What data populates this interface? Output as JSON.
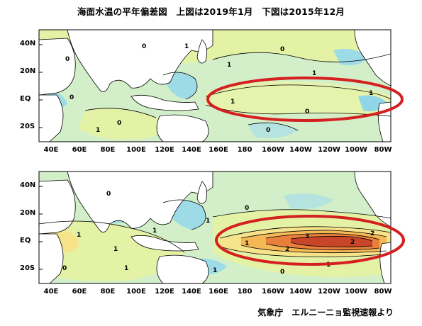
{
  "title": "海面水温の平年偏差図　上図は2019年1月　下図は2015年12月",
  "source": "気象庁　エルニーニョ監視速報より",
  "axes": {
    "latitude_labels": [
      "40N",
      "20N",
      "EQ",
      "20S"
    ],
    "longitude_labels": [
      "40E",
      "60E",
      "80E",
      "100E",
      "120E",
      "140E",
      "160E",
      "180",
      "160W",
      "140W",
      "120W",
      "100W",
      "80W"
    ]
  },
  "maps": [
    {
      "id": "top",
      "period": "2019年1月",
      "contour_labels": [
        "0",
        "0",
        "1",
        "1",
        "0",
        "0",
        "1",
        "0",
        "1",
        "0",
        "0",
        "1",
        "1"
      ],
      "highlight": "red-ellipse-equatorial-pacific"
    },
    {
      "id": "bottom",
      "period": "2015年12月",
      "contour_labels": [
        "0",
        "1",
        "1",
        "1",
        "0",
        "1",
        "1",
        "0",
        "1",
        "3",
        "2",
        "2",
        "2",
        "1",
        "0",
        "1"
      ],
      "highlight": "red-ellipse-equatorial-pacific"
    }
  ],
  "colors": {
    "cold_1": "#8fd6e8",
    "cold_2": "#5ec6e0",
    "neutral_low": "#c8ecd6",
    "neutral_high": "#e4f2a6",
    "warm_1": "#f7e48a",
    "warm_2": "#f5b856",
    "warm_3": "#e8803c",
    "warm_4": "#c8452a",
    "land": "#ffffff",
    "highlight": "#d42020"
  }
}
